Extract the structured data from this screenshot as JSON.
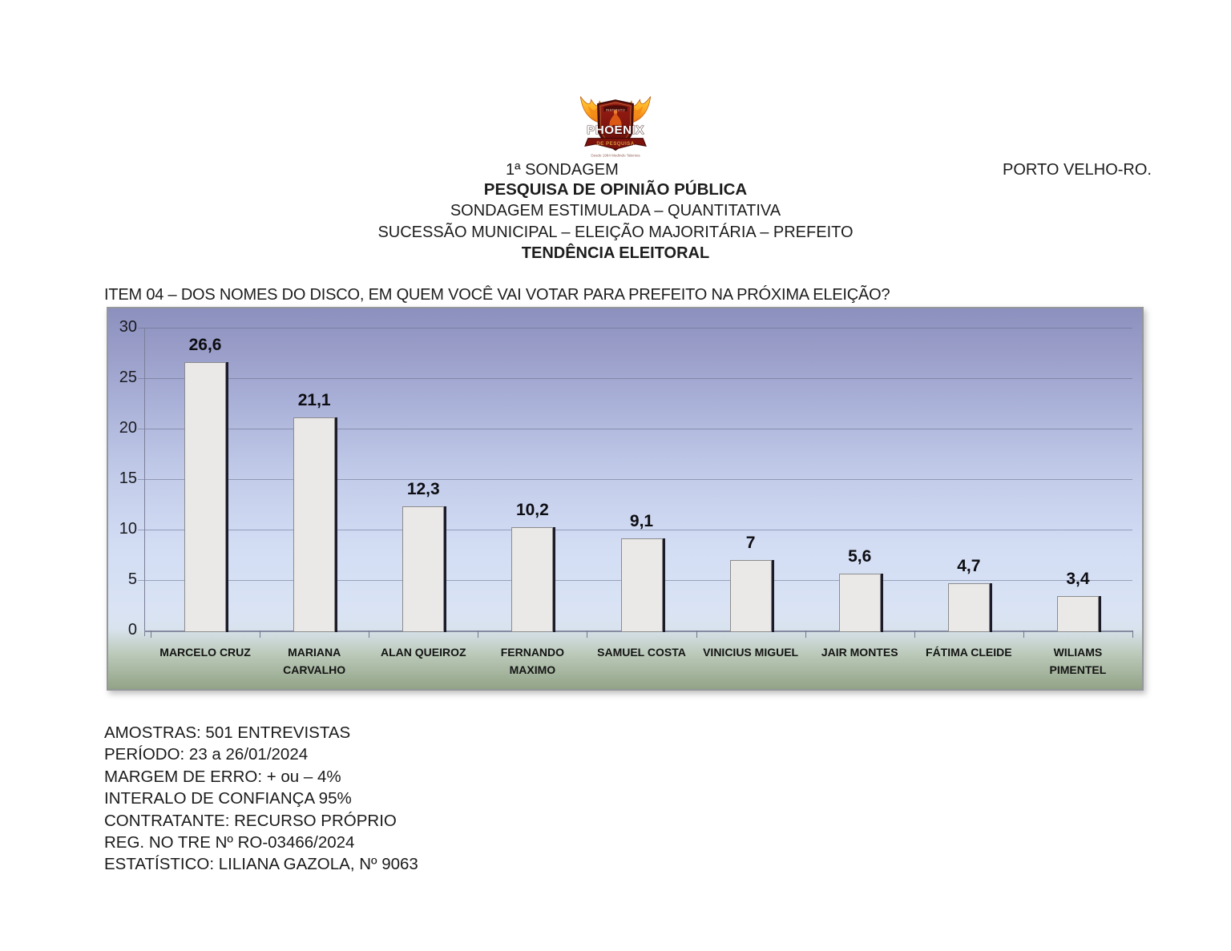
{
  "header": {
    "sondagem_label": "1ª SONDAGEM",
    "location": "PORTO VELHO-RO.",
    "title": "PESQUISA DE OPINIÃO PÚBLICA",
    "subtitle1": "SONDAGEM ESTIMULADA – QUANTITATIVA",
    "subtitle2": "SUCESSÃO MUNICIPAL – ELEIÇÃO MAJORITÁRIA – PREFEITO",
    "subtitle3": "TENDÊNCIA ELEITORAL"
  },
  "logo": {
    "brand": "PHOENIX",
    "banner": "DE PESQUISA",
    "shield_top_text": "INSTITUTO",
    "tagline": "Desde 1984 Medindo Talentos"
  },
  "question": "ITEM 04 – DOS NOMES DO DISCO, EM QUEM VOCÊ VAI VOTAR PARA PREFEITO NA PRÓXIMA ELEIÇÃO?",
  "chart_data": {
    "type": "bar",
    "title": "",
    "categories": [
      "MARCELO CRUZ",
      "MARIANA CARVALHO",
      "ALAN QUEIROZ",
      "FERNANDO MAXIMO",
      "SAMUEL COSTA",
      "VINICIUS MIGUEL",
      "JAIR MONTES",
      "FÁTIMA CLEIDE",
      "WILIAMS PIMENTEL"
    ],
    "category_labels": [
      "MARCELO CRUZ",
      "MARIANA\nCARVALHO",
      "ALAN QUEIROZ",
      "FERNANDO\nMAXIMO",
      "SAMUEL COSTA",
      "VINICIUS MIGUEL",
      "JAIR MONTES",
      "FÁTIMA CLEIDE",
      "WILIAMS\nPIMENTEL"
    ],
    "values": [
      26.6,
      21.1,
      12.3,
      10.2,
      9.1,
      7,
      5.6,
      4.7,
      3.4
    ],
    "value_labels": [
      "26,6",
      "21,1",
      "12,3",
      "10,2",
      "9,1",
      "7",
      "5,6",
      "4,7",
      "3,4"
    ],
    "xlabel": "",
    "ylabel": "",
    "ylim": [
      0,
      30
    ],
    "yticks": [
      0,
      5,
      10,
      15,
      20,
      25,
      30
    ],
    "grid": true,
    "legend_position": "none",
    "bar_fill": "#eae9e7",
    "bar_border": "#8c8c8c",
    "bar_shadow": "#1b1b29",
    "bg_gradient_top": "#8c90be",
    "bg_gradient_mid": "#d2dcf3",
    "bg_gradient_bottom": "#92a387"
  },
  "footer": {
    "lines": [
      "AMOSTRAS: 501 ENTREVISTAS",
      "PERÍODO: 23 a 26/01/2024",
      "MARGEM DE ERRO: + ou – 4%",
      "INTERALO DE CONFIANÇA 95%",
      "CONTRATANTE: RECURSO PRÓPRIO",
      "REG. NO TRE Nº RO-03466/2024",
      "ESTATÍSTICO: LILIANA GAZOLA, Nº 9063"
    ]
  }
}
